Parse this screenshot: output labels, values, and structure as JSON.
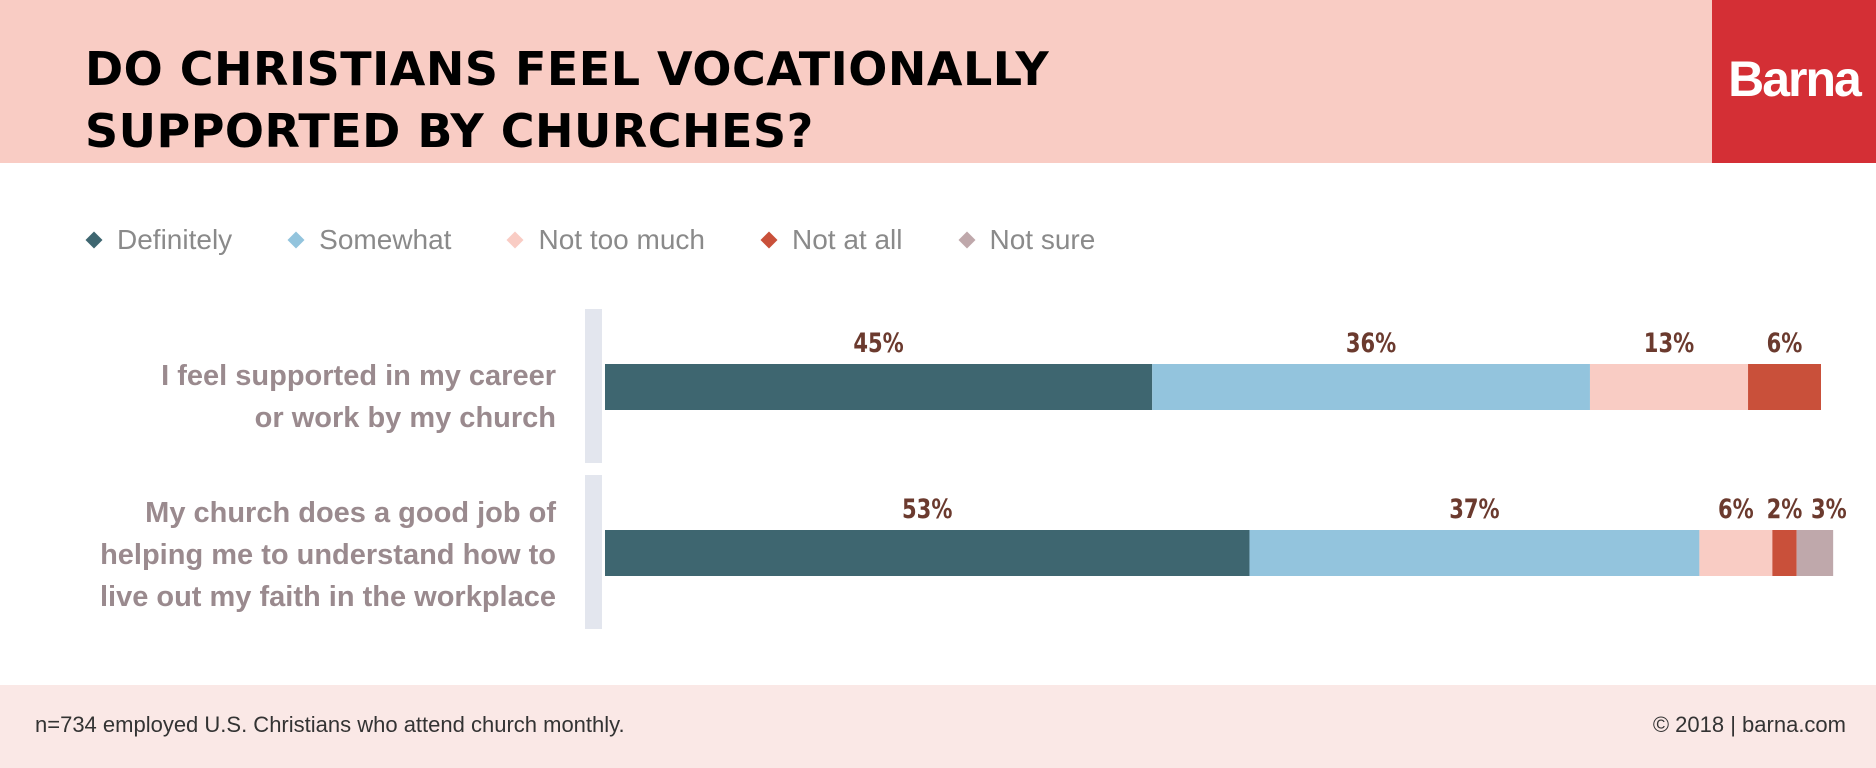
{
  "header": {
    "title": "DO CHRISTIANS FEEL VOCATIONALLY\nSUPPORTED BY CHURCHES?",
    "logo": "Barna",
    "background_color": "#f9ccc4",
    "logo_color": "#d42f35"
  },
  "chart_data": {
    "type": "bar",
    "orientation": "horizontal",
    "stacked": true,
    "categories": [
      "I feel supported in my career or work by my church",
      "My church does a good job of helping me to understand how to live out my faith in the workplace"
    ],
    "category_lines": [
      [
        "I feel supported in my career",
        "or work by my church"
      ],
      [
        "My church does a good job of",
        "helping me to understand how to",
        "live out my faith in the workplace"
      ]
    ],
    "series": [
      {
        "name": "Definitely",
        "color": "#3e6670",
        "values": [
          45,
          53
        ]
      },
      {
        "name": "Somewhat",
        "color": "#93c4dd",
        "values": [
          36,
          37
        ]
      },
      {
        "name": "Not too much",
        "color": "#f9ccc4",
        "values": [
          13,
          6
        ]
      },
      {
        "name": "Not at all",
        "color": "#c9503a",
        "values": [
          6,
          2
        ]
      },
      {
        "name": "Not sure",
        "color": "#bfa8ab",
        "values": [
          0,
          3
        ]
      }
    ],
    "data_labels": [
      [
        "45%",
        "36%",
        "13%",
        "6%",
        null
      ],
      [
        "53%",
        "37%",
        "6%",
        "2%",
        "3%"
      ]
    ],
    "xlim": [
      0,
      100
    ],
    "legend_position": "top-left",
    "grid": false,
    "label_color": "#6b3a2e"
  },
  "footer": {
    "note": "n=734 employed U.S. Christians who attend church monthly.",
    "credit": "© 2018 | barna.com"
  }
}
